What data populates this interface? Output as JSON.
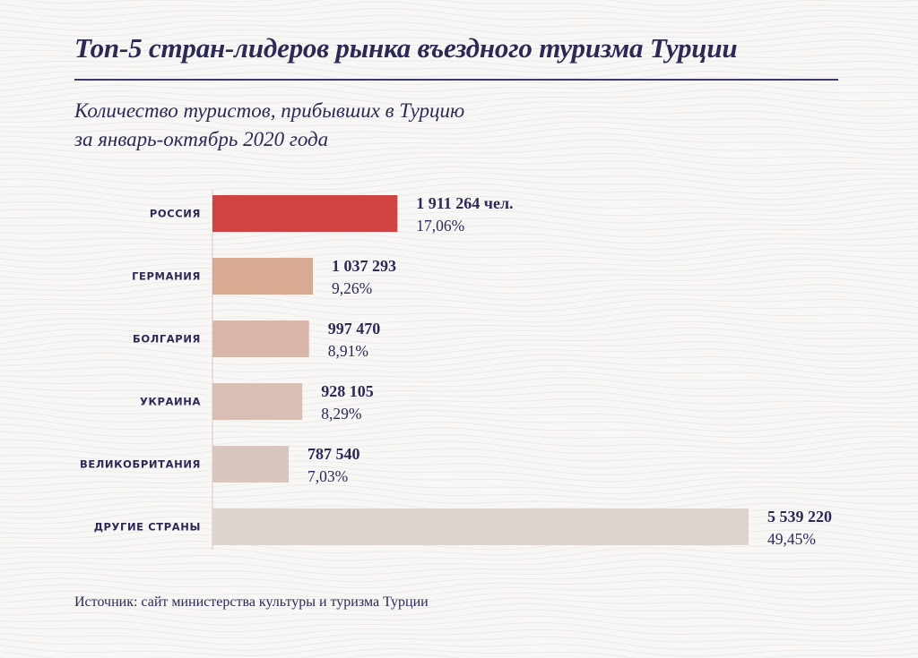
{
  "title": "Топ-5 стран-лидеров рынка въездного туризма Турции",
  "subtitle_line1": "Количество туристов, прибывших в Турцию",
  "subtitle_line2": "за январь-октябрь 2020 года",
  "source": "Источник: сайт министерства культуры и туризма Турции",
  "colors": {
    "text": "#2b2a55",
    "axis": "#e3d6d3",
    "bars": [
      "#cf4442",
      "#d9aa92",
      "#d8b7a9",
      "#d8beb3",
      "#d9c6bf",
      "#ddd3cf"
    ]
  },
  "chart_data": {
    "type": "bar",
    "orientation": "horizontal",
    "categories": [
      "РОССИЯ",
      "ГЕРМАНИЯ",
      "БОЛГАРИЯ",
      "УКРАИНА",
      "ВЕЛИКОБРИТАНИЯ",
      "ДРУГИЕ СТРАНЫ"
    ],
    "values": [
      1911264,
      1037293,
      997470,
      928105,
      787540,
      5539220
    ],
    "value_labels": [
      "1 911 264 чел.",
      "1 037 293",
      "997 470",
      "928 105",
      "787 540",
      "5 539 220"
    ],
    "percent_labels": [
      "17,06%",
      "9,26%",
      "8,91%",
      "8,29%",
      "7,03%",
      "49,45%"
    ],
    "xlim": [
      0,
      5539220
    ],
    "grid": false,
    "legend": "none"
  }
}
